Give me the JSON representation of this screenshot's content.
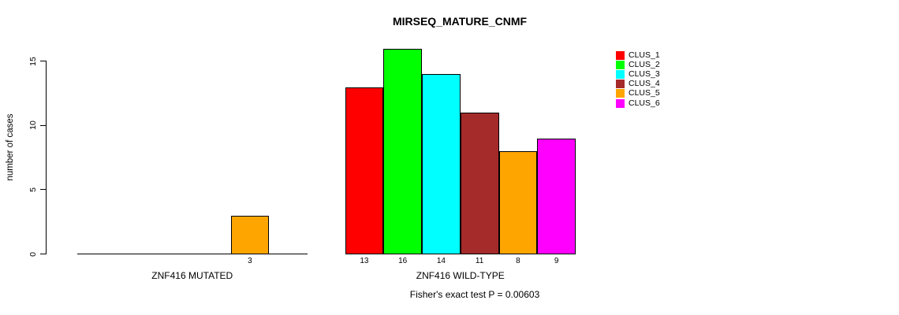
{
  "chart_data": {
    "type": "bar",
    "title": "MIRSEQ_MATURE_CNMF",
    "ylabel": "number of cases",
    "xlabel": "",
    "ylim": [
      0,
      15
    ],
    "yticks": [
      0,
      5,
      10,
      15
    ],
    "grid": false,
    "legend_position": "right-top",
    "series": [
      {
        "name": "CLUS_1",
        "color": "#FF0000"
      },
      {
        "name": "CLUS_2",
        "color": "#00FF00"
      },
      {
        "name": "CLUS_3",
        "color": "#00FFFF"
      },
      {
        "name": "CLUS_4",
        "color": "#A52A2A"
      },
      {
        "name": "CLUS_5",
        "color": "#FFA500"
      },
      {
        "name": "CLUS_6",
        "color": "#FF00FF"
      }
    ],
    "groups": [
      {
        "label": "ZNF416 MUTATED",
        "values": [
          0,
          0,
          0,
          0,
          3,
          0
        ]
      },
      {
        "label": "ZNF416 WILD-TYPE",
        "values": [
          13,
          16,
          14,
          11,
          8,
          9
        ]
      }
    ],
    "bar_value_labels_shown": [
      "3",
      "13",
      "16",
      "14",
      "11",
      "8",
      "9"
    ],
    "annotation": "Fisher's exact test P = 0.00603"
  },
  "colors": {
    "background": "#FFFFFF",
    "axis": "#000000",
    "text": "#000000"
  }
}
